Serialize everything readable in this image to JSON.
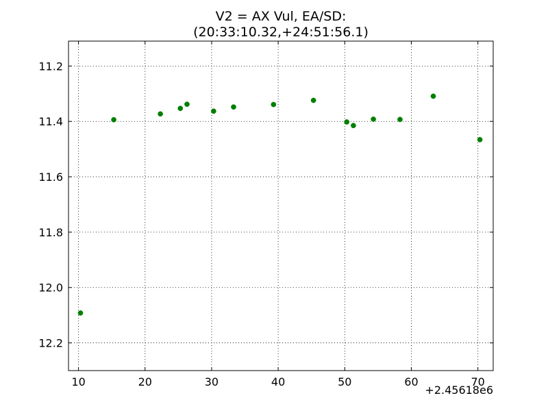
{
  "chart_data": {
    "type": "scatter",
    "title_lines": [
      "V2 = AX Vul, EA/SD:",
      "(20:33:10.32,+24:51:56.1)"
    ],
    "xlabel": "",
    "ylabel": "",
    "x_offset_label": "+2.45618e6",
    "xlim": [
      8.5,
      72.3
    ],
    "ylim": [
      12.3,
      11.11
    ],
    "y_inverted": true,
    "grid": true,
    "marker_color": "#007f00",
    "x_ticks": [
      10,
      20,
      30,
      40,
      50,
      60,
      70
    ],
    "x_tick_labels": [
      "10",
      "20",
      "30",
      "40",
      "50",
      "60",
      "70"
    ],
    "y_ticks": [
      11.2,
      11.4,
      11.6,
      11.8,
      12.0,
      12.2
    ],
    "y_tick_labels": [
      "11.2",
      "11.4",
      "11.6",
      "11.8",
      "12.0",
      "12.2"
    ],
    "points": [
      {
        "x": 10.3,
        "y": 12.092
      },
      {
        "x": 15.3,
        "y": 11.394
      },
      {
        "x": 22.3,
        "y": 11.373
      },
      {
        "x": 25.3,
        "y": 11.353
      },
      {
        "x": 26.3,
        "y": 11.338
      },
      {
        "x": 30.3,
        "y": 11.363
      },
      {
        "x": 33.3,
        "y": 11.348
      },
      {
        "x": 39.3,
        "y": 11.339
      },
      {
        "x": 45.3,
        "y": 11.324
      },
      {
        "x": 50.3,
        "y": 11.402
      },
      {
        "x": 51.3,
        "y": 11.415
      },
      {
        "x": 54.3,
        "y": 11.392
      },
      {
        "x": 58.3,
        "y": 11.393
      },
      {
        "x": 63.3,
        "y": 11.309
      },
      {
        "x": 70.3,
        "y": 11.466
      }
    ]
  }
}
